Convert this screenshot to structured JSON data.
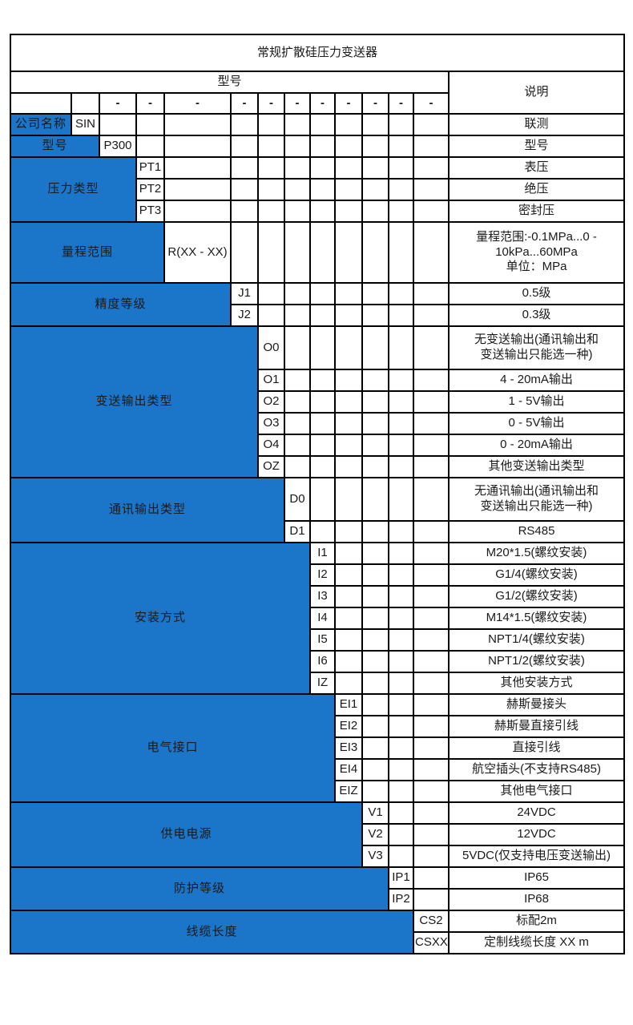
{
  "title": "常规扩散硅压力变送器",
  "header": {
    "model": "型号",
    "description": "说明",
    "placeholder_dash": "-"
  },
  "colors": {
    "accent_blue": "#1b75c8",
    "border_black": "#000000",
    "body_text": "#1a1a1a",
    "label_text": "#ffffff"
  },
  "groups": [
    {
      "label": "公司名称",
      "options": [
        {
          "code": "SIN",
          "desc": [
            "联测"
          ]
        }
      ]
    },
    {
      "label": "型号",
      "options": [
        {
          "code": "P300",
          "desc": [
            "型号"
          ]
        }
      ]
    },
    {
      "label": "压力类型",
      "options": [
        {
          "code": "PT1",
          "desc": [
            "表压"
          ]
        },
        {
          "code": "PT2",
          "desc": [
            "绝压"
          ]
        },
        {
          "code": "PT3",
          "desc": [
            "密封压"
          ]
        }
      ]
    },
    {
      "label": "量程范围",
      "options": [
        {
          "code": "R(XX - XX)",
          "desc": [
            "量程范围:-0.1MPa...0 -",
            "10kPa...60MPa",
            "单位：MPa"
          ]
        }
      ]
    },
    {
      "label": "精度等级",
      "options": [
        {
          "code": "J1",
          "desc": [
            "0.5级"
          ]
        },
        {
          "code": "J2",
          "desc": [
            "0.3级"
          ]
        }
      ]
    },
    {
      "label": "变送输出类型",
      "options": [
        {
          "code": "O0",
          "desc": [
            "无变送输出(通讯输出和",
            "变送输出只能选一种)"
          ]
        },
        {
          "code": "O1",
          "desc": [
            "4 - 20mA输出"
          ]
        },
        {
          "code": "O2",
          "desc": [
            "1 - 5V输出"
          ]
        },
        {
          "code": "O3",
          "desc": [
            "0 - 5V输出"
          ]
        },
        {
          "code": "O4",
          "desc": [
            "0 - 20mA输出"
          ]
        },
        {
          "code": "OZ",
          "desc": [
            "其他变送输出类型"
          ]
        }
      ]
    },
    {
      "label": "通讯输出类型",
      "options": [
        {
          "code": "D0",
          "desc": [
            "无通讯输出(通讯输出和",
            "变送输出只能选一种)"
          ]
        },
        {
          "code": "D1",
          "desc": [
            "RS485"
          ]
        }
      ]
    },
    {
      "label": "安装方式",
      "options": [
        {
          "code": "I1",
          "desc": [
            "M20*1.5(螺纹安装)"
          ]
        },
        {
          "code": "I2",
          "desc": [
            "G1/4(螺纹安装)"
          ]
        },
        {
          "code": "I3",
          "desc": [
            "G1/2(螺纹安装)"
          ]
        },
        {
          "code": "I4",
          "desc": [
            "M14*1.5(螺纹安装)"
          ]
        },
        {
          "code": "I5",
          "desc": [
            "NPT1/4(螺纹安装)"
          ]
        },
        {
          "code": "I6",
          "desc": [
            "NPT1/2(螺纹安装)"
          ]
        },
        {
          "code": "IZ",
          "desc": [
            "其他安装方式"
          ]
        }
      ]
    },
    {
      "label": "电气接口",
      "options": [
        {
          "code": "EI1",
          "desc": [
            "赫斯曼接头"
          ]
        },
        {
          "code": "EI2",
          "desc": [
            "赫斯曼直接引线"
          ]
        },
        {
          "code": "EI3",
          "desc": [
            "直接引线"
          ]
        },
        {
          "code": "EI4",
          "desc": [
            "航空插头(不支持RS485)"
          ]
        },
        {
          "code": "EIZ",
          "desc": [
            "其他电气接口"
          ]
        }
      ]
    },
    {
      "label": "供电电源",
      "options": [
        {
          "code": "V1",
          "desc": [
            "24VDC"
          ]
        },
        {
          "code": "V2",
          "desc": [
            "12VDC"
          ]
        },
        {
          "code": "V3",
          "desc": [
            "5VDC(仅支持电压变送输出)"
          ]
        }
      ]
    },
    {
      "label": "防护等级",
      "options": [
        {
          "code": "IP1",
          "desc": [
            "IP65"
          ]
        },
        {
          "code": "IP2",
          "desc": [
            "IP68"
          ]
        }
      ]
    },
    {
      "label": "线缆长度",
      "options": [
        {
          "code": "CS2",
          "desc": [
            "标配2m"
          ]
        },
        {
          "code": "CSXX",
          "desc": [
            "定制线缆长度 XX m"
          ]
        }
      ]
    }
  ]
}
